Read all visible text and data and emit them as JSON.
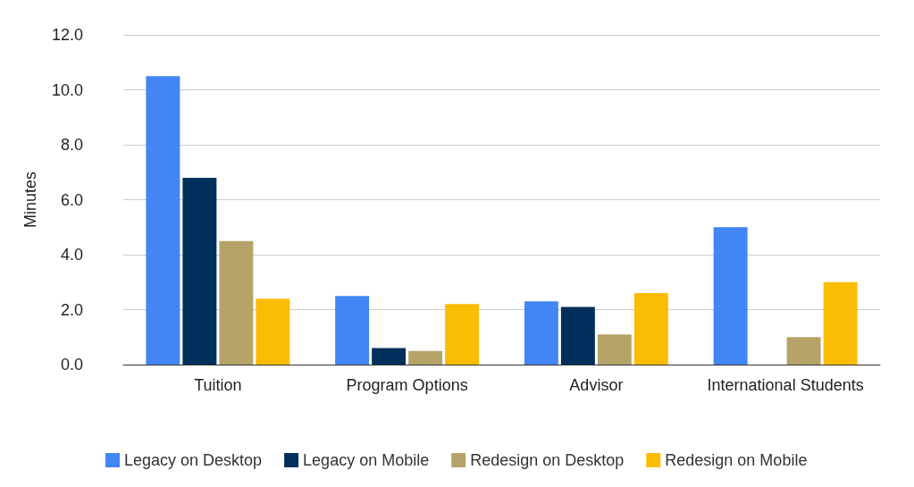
{
  "chart_data": {
    "type": "bar",
    "ylabel": "Minutes",
    "categories": [
      "Tuition",
      "Program Options",
      "Advisor",
      "International Students"
    ],
    "series": [
      {
        "name": "Legacy on Desktop",
        "color": "#4285f4",
        "values": [
          10.5,
          2.5,
          2.3,
          5.0
        ]
      },
      {
        "name": "Legacy on Mobile",
        "color": "#002f5b",
        "values": [
          6.8,
          0.6,
          2.1,
          null
        ]
      },
      {
        "name": "Redesign on Desktop",
        "color": "#b5a36a",
        "values": [
          4.5,
          0.5,
          1.1,
          1.0
        ]
      },
      {
        "name": "Redesign on Mobile",
        "color": "#fbbc04",
        "values": [
          2.4,
          2.2,
          2.6,
          3.0
        ]
      }
    ],
    "ylim": [
      0,
      12
    ],
    "yticks": [
      {
        "value": 0,
        "label": "0.0"
      },
      {
        "value": 2,
        "label": "2.0"
      },
      {
        "value": 4,
        "label": "4.0"
      },
      {
        "value": 6,
        "label": "6.0"
      },
      {
        "value": 8,
        "label": "8.0"
      },
      {
        "value": 10,
        "label": "10.0"
      },
      {
        "value": 12,
        "label": "12.0"
      }
    ],
    "grid": "y",
    "legend": "bottom"
  }
}
